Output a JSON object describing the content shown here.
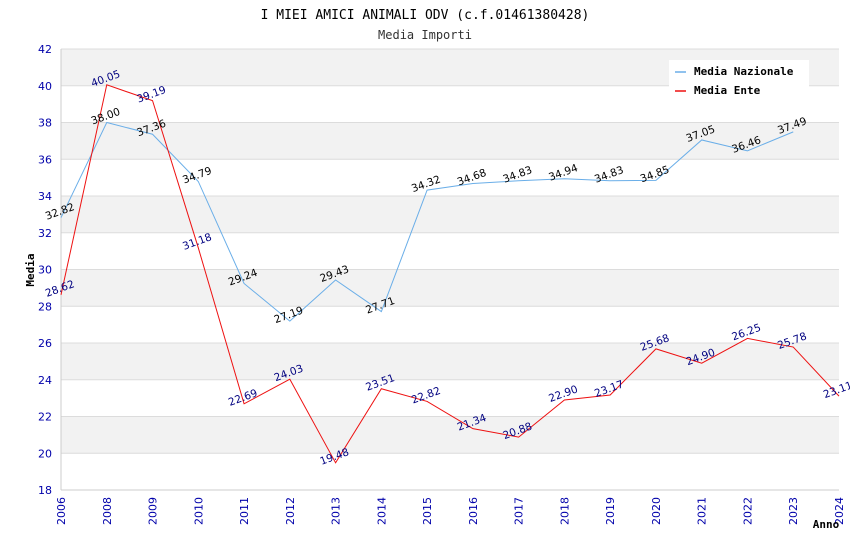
{
  "chart_data": {
    "type": "line",
    "title": "I MIEI AMICI ANIMALI ODV (c.f.01461380428)",
    "subtitle": "Media Importi",
    "xlabel": "Anno",
    "ylabel": "Media",
    "ylim": [
      18,
      42
    ],
    "yticks": [
      18,
      20,
      22,
      24,
      26,
      28,
      30,
      32,
      34,
      36,
      38,
      40,
      42
    ],
    "x": [
      "2006",
      "2008",
      "2009",
      "2010",
      "2011",
      "2012",
      "2013",
      "2014",
      "2015",
      "2016",
      "2017",
      "2018",
      "2019",
      "2020",
      "2021",
      "2022",
      "2023",
      "2024"
    ],
    "grid": true,
    "legend_position": "top-right",
    "series": [
      {
        "name": "Media Nazionale",
        "color": "#6aaee8",
        "label_color": "#000000",
        "values": [
          32.82,
          38.0,
          37.36,
          34.79,
          29.24,
          27.19,
          29.43,
          27.71,
          34.32,
          34.68,
          34.83,
          34.94,
          34.83,
          34.85,
          37.05,
          36.46,
          37.49,
          null
        ],
        "labels": [
          "32.82",
          "38.00",
          "37.36",
          "34.79",
          "29.24",
          "27.19",
          "29.43",
          "27.71",
          "34.32",
          "34.68",
          "34.83",
          "34.94",
          "34.83",
          "34.85",
          "37.05",
          "36.46",
          "37.49",
          ""
        ]
      },
      {
        "name": "Media Ente",
        "color": "#ee1111",
        "label_color": "#000080",
        "values": [
          28.62,
          40.05,
          39.19,
          31.18,
          22.69,
          24.03,
          19.48,
          23.51,
          22.82,
          21.34,
          20.88,
          22.9,
          23.17,
          25.68,
          24.9,
          26.25,
          25.78,
          23.11
        ],
        "labels": [
          "28.62",
          "40.05",
          "39.19",
          "31.18",
          "22.69",
          "24.03",
          "19.48",
          "23.51",
          "22.82",
          "21.34",
          "20.88",
          "22.90",
          "23.17",
          "25.68",
          "24.90",
          "26.25",
          "25.78",
          "23.11"
        ]
      }
    ]
  }
}
